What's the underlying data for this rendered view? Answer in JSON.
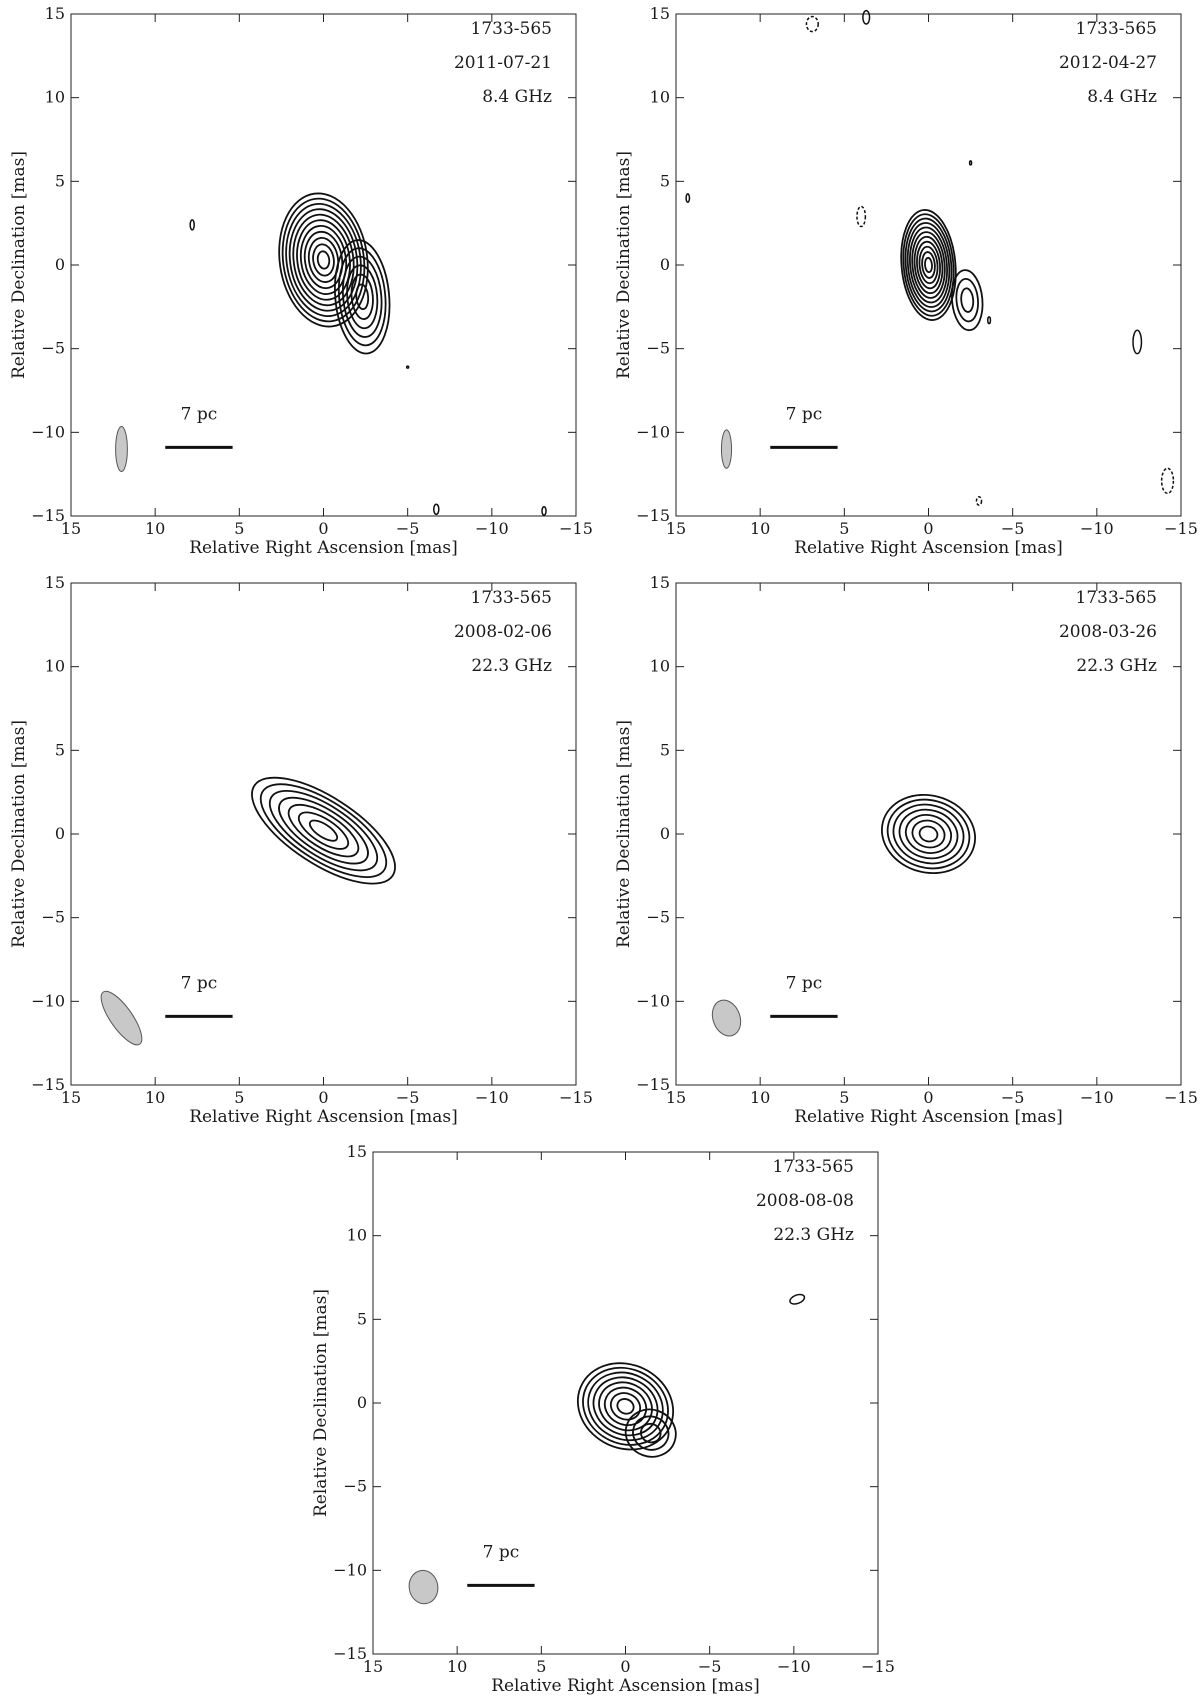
{
  "chart_data": [
    {
      "type": "contour",
      "title": "",
      "source": "1733-565",
      "date": "2011-07-21",
      "frequency": "8.4 GHz",
      "xlabel": "Relative Right Ascension [mas]",
      "ylabel": "Relative Declination [mas]",
      "xlim": [
        15,
        -15
      ],
      "ylim": [
        -15,
        15
      ],
      "xticks": [
        15,
        10,
        5,
        0,
        -5,
        -10,
        -15
      ],
      "yticks": [
        -15,
        -10,
        -5,
        0,
        5,
        10,
        15
      ],
      "scale_bar": {
        "label": "7 pc",
        "x_from": 9.4,
        "x_to": 5.4,
        "y": -10.9
      },
      "beam": {
        "x": 12.0,
        "y": -11.0,
        "major": 2.7,
        "minor": 0.7,
        "pa_deg": 0
      },
      "components": [
        {
          "x": 0.0,
          "y": 0.3,
          "a": 2.6,
          "b": 4.0,
          "angle": -8,
          "levels": 11
        },
        {
          "x": -2.3,
          "y": -1.9,
          "a": 1.6,
          "b": 3.4,
          "angle": -5,
          "levels": 6
        }
      ],
      "islands": [
        {
          "x": 7.8,
          "y": 2.4,
          "a": 0.12,
          "b": 0.3,
          "angle": 0,
          "dashed": false
        },
        {
          "x": -5.0,
          "y": -6.1,
          "a": 0.05,
          "b": 0.05,
          "angle": 0,
          "dashed": false
        },
        {
          "x": -6.7,
          "y": -14.6,
          "a": 0.15,
          "b": 0.3,
          "angle": 0,
          "dashed": false
        },
        {
          "x": -13.1,
          "y": -14.7,
          "a": 0.12,
          "b": 0.25,
          "angle": 0,
          "dashed": false
        }
      ]
    },
    {
      "type": "contour",
      "title": "",
      "source": "1733-565",
      "date": "2012-04-27",
      "frequency": "8.4 GHz",
      "xlabel": "Relative Right Ascension [mas]",
      "ylabel": "Relative Declination [mas]",
      "xlim": [
        15,
        -15
      ],
      "ylim": [
        -15,
        15
      ],
      "xticks": [
        15,
        10,
        5,
        0,
        -5,
        -10,
        -15
      ],
      "yticks": [
        -15,
        -10,
        -5,
        0,
        5,
        10,
        15
      ],
      "scale_bar": {
        "label": "7 pc",
        "x_from": 9.4,
        "x_to": 5.4,
        "y": -10.9
      },
      "beam": {
        "x": 12.0,
        "y": -11.0,
        "major": 2.3,
        "minor": 0.6,
        "pa_deg": 0
      },
      "components": [
        {
          "x": 0.0,
          "y": 0.0,
          "a": 1.6,
          "b": 3.3,
          "angle": -5,
          "levels": 11
        },
        {
          "x": -2.3,
          "y": -2.1,
          "a": 0.9,
          "b": 1.8,
          "angle": -5,
          "levels": 3
        }
      ],
      "islands": [
        {
          "x": 6.9,
          "y": 14.4,
          "a": 0.35,
          "b": 0.45,
          "angle": 0,
          "dashed": true
        },
        {
          "x": 3.7,
          "y": 14.8,
          "a": 0.2,
          "b": 0.4,
          "angle": 0,
          "dashed": false
        },
        {
          "x": 14.3,
          "y": 4.0,
          "a": 0.1,
          "b": 0.25,
          "angle": 0,
          "dashed": false
        },
        {
          "x": 4.0,
          "y": 2.9,
          "a": 0.25,
          "b": 0.6,
          "angle": 0,
          "dashed": true
        },
        {
          "x": -2.5,
          "y": 6.1,
          "a": 0.05,
          "b": 0.12,
          "angle": 0,
          "dashed": false
        },
        {
          "x": -3.6,
          "y": -3.3,
          "a": 0.08,
          "b": 0.2,
          "angle": 0,
          "dashed": false
        },
        {
          "x": -12.4,
          "y": -4.6,
          "a": 0.25,
          "b": 0.7,
          "angle": 0,
          "dashed": false
        },
        {
          "x": -14.2,
          "y": -12.9,
          "a": 0.35,
          "b": 0.75,
          "angle": 0,
          "dashed": true
        },
        {
          "x": -3.0,
          "y": -14.1,
          "a": 0.15,
          "b": 0.25,
          "angle": 0,
          "dashed": true
        }
      ]
    },
    {
      "type": "contour",
      "title": "",
      "source": "1733-565",
      "date": "2008-02-06",
      "frequency": "22.3 GHz",
      "xlabel": "Relative Right Ascension [mas]",
      "ylabel": "Relative Declination [mas]",
      "xlim": [
        15,
        -15
      ],
      "ylim": [
        -15,
        15
      ],
      "xticks": [
        15,
        10,
        5,
        0,
        -5,
        -10,
        -15
      ],
      "yticks": [
        -15,
        -10,
        -5,
        0,
        5,
        10,
        15
      ],
      "scale_bar": {
        "label": "7 pc",
        "x_from": 9.4,
        "x_to": 5.4,
        "y": -10.9
      },
      "beam": {
        "x": 12.0,
        "y": -11.0,
        "major": 3.8,
        "minor": 1.3,
        "pa_deg": -35
      },
      "components": [
        {
          "x": 0.0,
          "y": 0.2,
          "a": 4.9,
          "b": 2.0,
          "angle": 33,
          "levels": 7
        }
      ],
      "islands": []
    },
    {
      "type": "contour",
      "title": "",
      "source": "1733-565",
      "date": "2008-03-26",
      "frequency": "22.3 GHz",
      "xlabel": "Relative Right Ascension [mas]",
      "ylabel": "Relative Declination [mas]",
      "xlim": [
        15,
        -15
      ],
      "ylim": [
        -15,
        15
      ],
      "xticks": [
        15,
        10,
        5,
        0,
        -5,
        -10,
        -15
      ],
      "yticks": [
        -15,
        -10,
        -5,
        0,
        5,
        10,
        15
      ],
      "scale_bar": {
        "label": "7 pc",
        "x_from": 9.4,
        "x_to": 5.4,
        "y": -10.9
      },
      "beam": {
        "x": 12.0,
        "y": -11.0,
        "major": 2.2,
        "minor": 1.6,
        "pa_deg": -20
      },
      "components": [
        {
          "x": 0.0,
          "y": 0.0,
          "a": 2.8,
          "b": 2.3,
          "angle": 15,
          "levels": 7
        }
      ],
      "islands": []
    },
    {
      "type": "contour",
      "title": "",
      "source": "1733-565",
      "date": "2008-08-08",
      "frequency": "22.3 GHz",
      "xlabel": "Relative Right Ascension [mas]",
      "ylabel": "Relative Declination [mas]",
      "xlim": [
        15,
        -15
      ],
      "ylim": [
        -15,
        15
      ],
      "xticks": [
        15,
        10,
        5,
        0,
        -5,
        -10,
        -15
      ],
      "yticks": [
        -15,
        -10,
        -5,
        0,
        5,
        10,
        15
      ],
      "scale_bar": {
        "label": "7 pc",
        "x_from": 9.4,
        "x_to": 5.4,
        "y": -10.9
      },
      "beam": {
        "x": 12.0,
        "y": -11.0,
        "major": 2.0,
        "minor": 1.7,
        "pa_deg": -10
      },
      "components": [
        {
          "x": 0.0,
          "y": -0.2,
          "a": 2.9,
          "b": 2.5,
          "angle": 25,
          "levels": 8
        },
        {
          "x": -1.5,
          "y": -1.8,
          "a": 1.5,
          "b": 1.4,
          "angle": 20,
          "levels": 3
        }
      ],
      "islands": [
        {
          "x": -10.2,
          "y": 6.2,
          "a": 0.45,
          "b": 0.25,
          "angle": -20,
          "dashed": false
        }
      ]
    }
  ]
}
